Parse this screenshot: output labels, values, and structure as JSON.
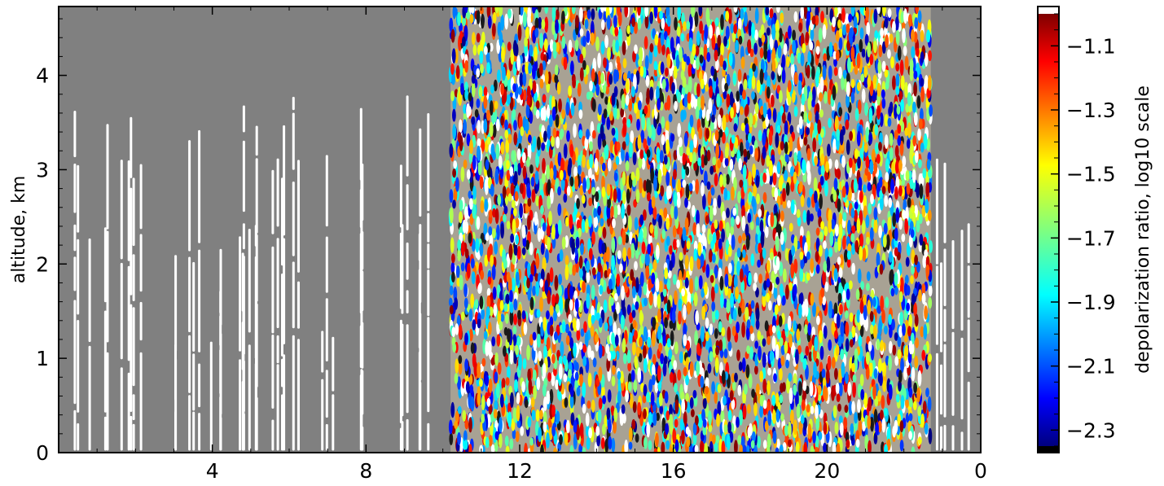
{
  "chart_data": {
    "type": "heatmap",
    "title": "",
    "xlabel": "",
    "ylabel": "altitude, km",
    "x_tick_labels": [
      "4",
      "8",
      "12",
      "16",
      "20",
      "0"
    ],
    "y_ticks": [
      0,
      1,
      2,
      3,
      4
    ],
    "y_tick_labels": [
      "0",
      "1",
      "2",
      "3",
      "4"
    ],
    "ylim": [
      0,
      4.73
    ],
    "colorbar": {
      "label": "depolarization ratio, log10 scale",
      "colormap": "jet",
      "ticks": [
        -1.1,
        -1.3,
        -1.5,
        -1.7,
        -1.9,
        -2.1,
        -2.3
      ],
      "tick_labels": [
        "−1.1",
        "−1.3",
        "−1.5",
        "−1.7",
        "−1.9",
        "−2.1",
        "−2.3"
      ],
      "range": [
        -2.35,
        -1.0
      ]
    },
    "missing_value_color": "#808080",
    "regions": [
      {
        "x_start": 0.0,
        "x_end": 10.2,
        "state": "no data (gray) with white contour streaks"
      },
      {
        "x_start": 10.2,
        "x_end": 22.7,
        "state": "noisy depolarization values spanning full colormap"
      },
      {
        "x_start": 22.7,
        "x_end": 24.0,
        "state": "no data (gray) with white contour streaks"
      }
    ]
  }
}
